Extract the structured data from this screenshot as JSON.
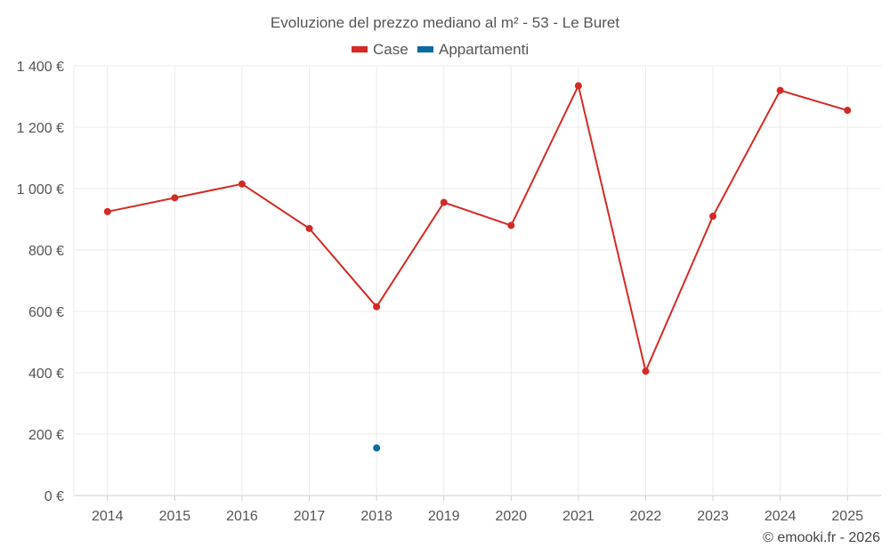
{
  "chart_data": {
    "type": "line",
    "title": "Evoluzione del prezzo mediano al m² - 53 - Le Buret",
    "categories": [
      "2014",
      "2015",
      "2016",
      "2017",
      "2018",
      "2019",
      "2020",
      "2021",
      "2022",
      "2023",
      "2024",
      "2025"
    ],
    "series": [
      {
        "name": "Case",
        "color": "#d42a26",
        "values": [
          925,
          970,
          1015,
          870,
          615,
          955,
          880,
          1335,
          405,
          910,
          1320,
          1255
        ]
      },
      {
        "name": "Appartamenti",
        "color": "#0b6aa2",
        "values": [
          null,
          null,
          null,
          null,
          155,
          null,
          null,
          null,
          null,
          null,
          null,
          null
        ]
      }
    ],
    "ylim": [
      0,
      1400
    ],
    "yticks": [
      0,
      200,
      400,
      600,
      800,
      1000,
      1200,
      1400
    ],
    "ytick_labels": [
      "0 €",
      "200 €",
      "400 €",
      "600 €",
      "800 €",
      "1 000 €",
      "1 200 €",
      "1 400 €"
    ],
    "grid": true,
    "legend": "top-center"
  },
  "credit": "© emooki.fr - 2026"
}
